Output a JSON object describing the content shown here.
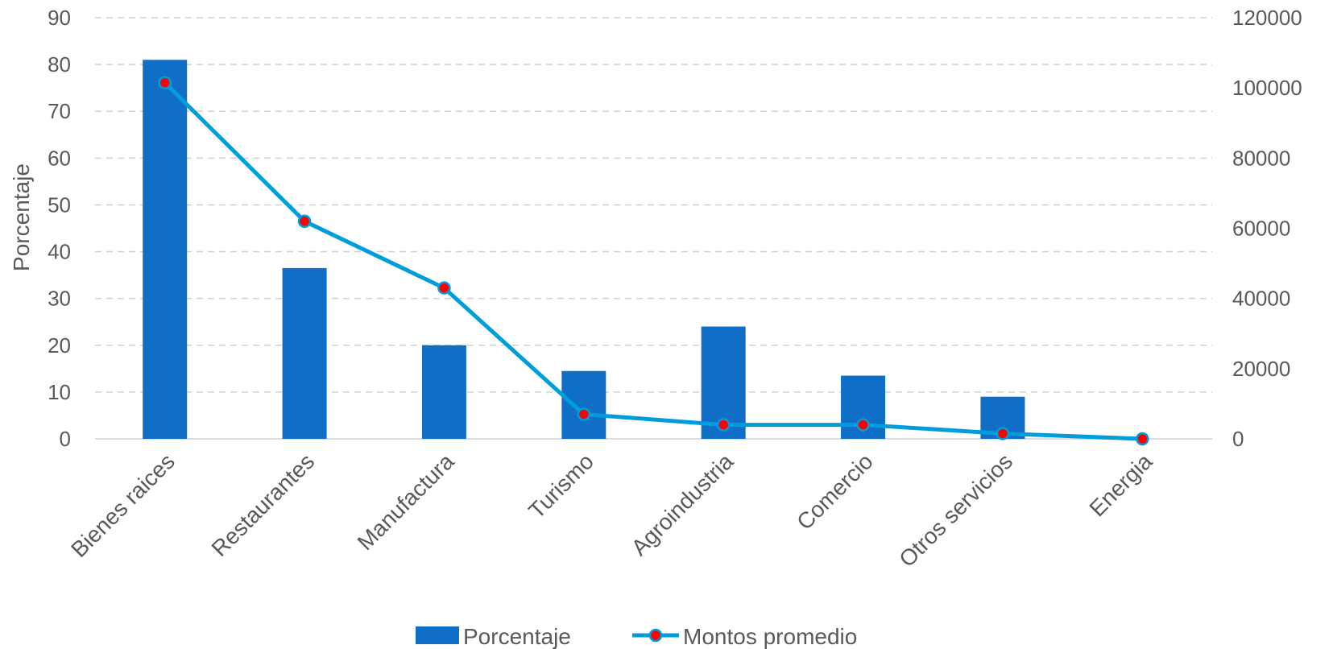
{
  "chart_data": {
    "type": "bar",
    "title": "",
    "categories": [
      "Bienes raices",
      "Restaurantes",
      "Manufactura",
      "Turismo",
      "Agroindustria",
      "Comercio",
      "Otros servicios",
      "Energia"
    ],
    "series": [
      {
        "name": "Porcentaje",
        "type": "bar",
        "axis": "left",
        "color": "#0f6fc6",
        "values": [
          81,
          36.5,
          20,
          14.5,
          24,
          13.5,
          9,
          0
        ]
      },
      {
        "name": "Montos promedio",
        "type": "line",
        "axis": "right",
        "color": "#009ddc",
        "marker_color": "#ff0000",
        "values": [
          101500,
          62000,
          43000,
          7000,
          4000,
          4000,
          1500,
          0
        ]
      }
    ],
    "ylabel": "Porcentaje",
    "ylabel_right": "",
    "ylim": [
      0,
      90
    ],
    "ylim_right": [
      0,
      120000
    ],
    "yticks": [
      "0",
      "10",
      "20",
      "30",
      "40",
      "50",
      "60",
      "70",
      "80",
      "90"
    ],
    "yticks_right": [
      "0",
      "20000",
      "40000",
      "60000",
      "80000",
      "100000",
      "120000"
    ],
    "grid": true,
    "legend": "bottom"
  }
}
